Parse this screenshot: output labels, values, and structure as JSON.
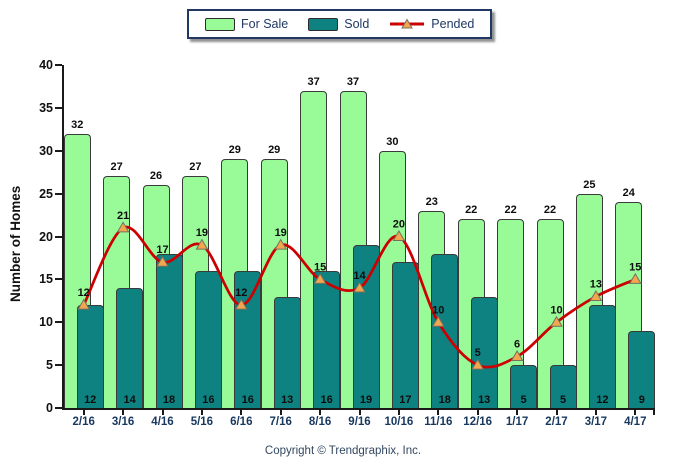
{
  "legend": {
    "for_sale": "For Sale",
    "sold": "Sold",
    "pended": "Pended"
  },
  "y_axis": {
    "title": "Number of Homes",
    "ticks": [
      0,
      5,
      10,
      15,
      20,
      25,
      30,
      35,
      40
    ]
  },
  "footer": {
    "copyright": "Copyright © Trendgraphix, Inc."
  },
  "colors": {
    "for_sale": "#98FB98",
    "sold": "#0E8181",
    "pended": "#CC0000",
    "marker_fill": "#F2A74E",
    "marker_stroke": "#77705F",
    "bar_border": "#3A3A3A",
    "axis": "#1A1A1A",
    "x_label": "#17375E",
    "legend_border": "#1F3864",
    "legend_text": "#1F3864",
    "value_label": "#0D0D0D",
    "footer_text": "#33475F"
  },
  "chart_data": {
    "type": "bar",
    "categories": [
      "2/16",
      "3/16",
      "4/16",
      "5/16",
      "6/16",
      "7/16",
      "8/16",
      "9/16",
      "10/16",
      "11/16",
      "12/16",
      "1/17",
      "2/17",
      "3/17",
      "4/17"
    ],
    "series": [
      {
        "name": "For Sale",
        "type": "bar",
        "color": "#98FB98",
        "values": [
          32,
          27,
          26,
          27,
          29,
          29,
          37,
          37,
          30,
          23,
          22,
          22,
          22,
          25,
          24
        ]
      },
      {
        "name": "Sold",
        "type": "bar",
        "color": "#0E8181",
        "values": [
          12,
          14,
          18,
          16,
          16,
          13,
          16,
          19,
          17,
          18,
          13,
          5,
          5,
          12,
          9
        ]
      },
      {
        "name": "Pended",
        "type": "line",
        "color": "#CC0000",
        "values": [
          12,
          21,
          17,
          19,
          12,
          19,
          15,
          14,
          20,
          10,
          5,
          6,
          10,
          13,
          15
        ]
      }
    ],
    "title": "",
    "xlabel": "",
    "ylabel": "Number of Homes",
    "ylim": [
      0,
      40
    ],
    "ytick_step": 5,
    "grid": false,
    "legend_position": "top-center"
  }
}
